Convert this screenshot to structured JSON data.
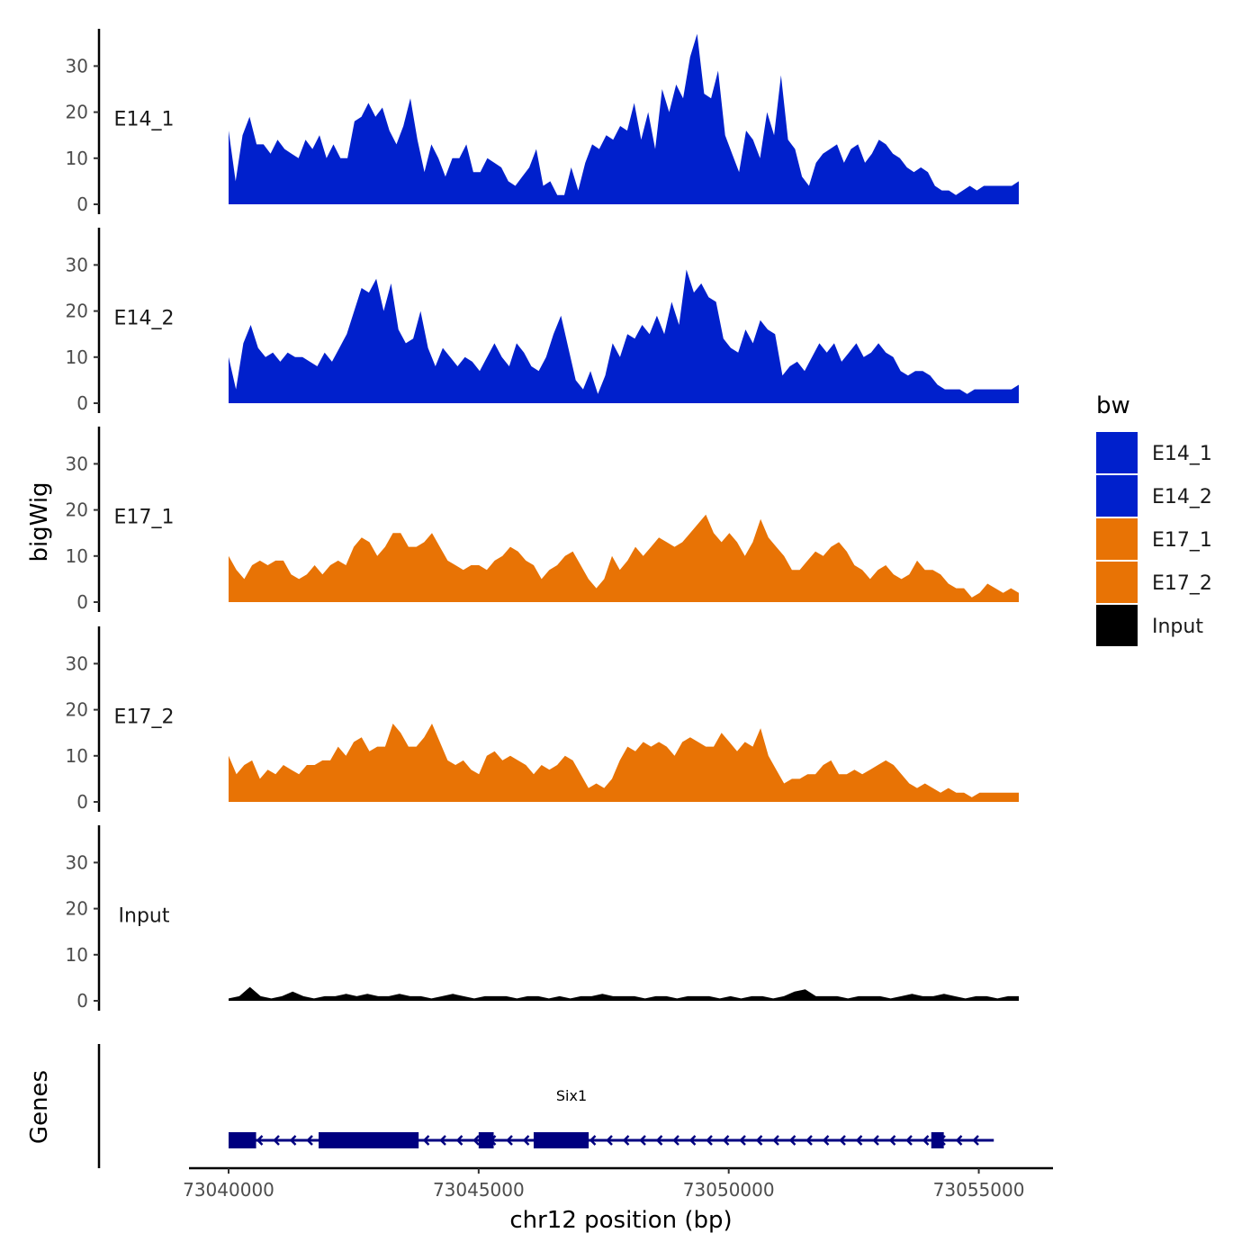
{
  "chart_data": {
    "type": "area",
    "ylabel": "bigWig",
    "xlabel": "chr12 position (bp)",
    "genes_label": "Genes",
    "ylim": [
      0,
      38
    ],
    "y_ticks": [
      "0",
      "10",
      "20",
      "30"
    ],
    "x_ticks": [
      {
        "value": 73040000,
        "label": "73040000"
      },
      {
        "value": 73045000,
        "label": "73045000"
      },
      {
        "value": 73050000,
        "label": "73050000"
      },
      {
        "value": 73055000,
        "label": "73055000"
      }
    ],
    "x_range": [
      73040000,
      73055800
    ],
    "legend": {
      "title": "bw",
      "items": [
        {
          "name": "E14_1",
          "color": "#0020CC"
        },
        {
          "name": "E14_2",
          "color": "#0020CC"
        },
        {
          "name": "E17_1",
          "color": "#E87305"
        },
        {
          "name": "E17_2",
          "color": "#E87305"
        },
        {
          "name": "Input",
          "color": "#000000"
        }
      ]
    },
    "tracks": [
      {
        "name": "E14_1",
        "color": "#0020CC",
        "values": [
          16,
          5,
          15,
          19,
          13,
          13,
          11,
          14,
          12,
          11,
          10,
          14,
          12,
          15,
          10,
          13,
          10,
          10,
          18,
          19,
          22,
          19,
          21,
          16,
          13,
          17,
          23,
          14,
          7,
          13,
          10,
          6,
          10,
          10,
          13,
          7,
          7,
          10,
          9,
          8,
          5,
          4,
          6,
          8,
          12,
          4,
          5,
          2,
          2,
          8,
          3,
          9,
          13,
          12,
          15,
          14,
          17,
          16,
          22,
          14,
          20,
          12,
          25,
          20,
          26,
          23,
          32,
          37,
          24,
          23,
          29,
          15,
          11,
          7,
          16,
          14,
          10,
          20,
          15,
          28,
          14,
          12,
          6,
          4,
          9,
          11,
          12,
          13,
          9,
          12,
          13,
          9,
          11,
          14,
          13,
          11,
          10,
          8,
          7,
          8,
          7,
          4,
          3,
          3,
          2,
          3,
          4,
          3,
          4,
          4,
          4,
          4,
          4,
          5
        ]
      },
      {
        "name": "E14_2",
        "color": "#0020CC",
        "values": [
          10,
          3,
          13,
          17,
          12,
          10,
          11,
          9,
          11,
          10,
          10,
          9,
          8,
          11,
          9,
          12,
          15,
          20,
          25,
          24,
          27,
          20,
          26,
          16,
          13,
          14,
          20,
          12,
          8,
          12,
          10,
          8,
          10,
          9,
          7,
          10,
          13,
          10,
          8,
          13,
          11,
          8,
          7,
          10,
          15,
          19,
          12,
          5,
          3,
          7,
          2,
          6,
          13,
          10,
          15,
          14,
          17,
          15,
          19,
          15,
          22,
          17,
          29,
          24,
          26,
          23,
          22,
          14,
          12,
          11,
          16,
          13,
          18,
          16,
          15,
          6,
          8,
          9,
          7,
          10,
          13,
          11,
          13,
          9,
          11,
          13,
          10,
          11,
          13,
          11,
          10,
          7,
          6,
          7,
          7,
          6,
          4,
          3,
          3,
          3,
          2,
          3,
          3,
          3,
          3,
          3,
          3,
          4
        ]
      },
      {
        "name": "E17_1",
        "color": "#E87305",
        "values": [
          10,
          7,
          5,
          8,
          9,
          8,
          9,
          9,
          6,
          5,
          6,
          8,
          6,
          8,
          9,
          8,
          12,
          14,
          13,
          10,
          12,
          15,
          15,
          12,
          12,
          13,
          15,
          12,
          9,
          8,
          7,
          8,
          8,
          7,
          9,
          10,
          12,
          11,
          9,
          8,
          5,
          7,
          8,
          10,
          11,
          8,
          5,
          3,
          5,
          10,
          7,
          9,
          12,
          10,
          12,
          14,
          13,
          12,
          13,
          15,
          17,
          19,
          15,
          13,
          15,
          13,
          10,
          13,
          18,
          14,
          12,
          10,
          7,
          7,
          9,
          11,
          10,
          12,
          13,
          11,
          8,
          7,
          5,
          7,
          8,
          6,
          5,
          6,
          9,
          7,
          7,
          6,
          4,
          3,
          3,
          1,
          2,
          4,
          3,
          2,
          3,
          2
        ]
      },
      {
        "name": "E17_2",
        "color": "#E87305",
        "values": [
          10,
          6,
          8,
          9,
          5,
          7,
          6,
          8,
          7,
          6,
          8,
          8,
          9,
          9,
          12,
          10,
          13,
          14,
          11,
          12,
          12,
          17,
          15,
          12,
          12,
          14,
          17,
          13,
          9,
          8,
          9,
          7,
          6,
          10,
          11,
          9,
          10,
          9,
          8,
          6,
          8,
          7,
          8,
          10,
          9,
          6,
          3,
          4,
          3,
          5,
          9,
          12,
          11,
          13,
          12,
          13,
          12,
          10,
          13,
          14,
          13,
          12,
          12,
          15,
          13,
          11,
          13,
          12,
          16,
          10,
          7,
          4,
          5,
          5,
          6,
          6,
          8,
          9,
          6,
          6,
          7,
          6,
          7,
          8,
          9,
          8,
          6,
          4,
          3,
          4,
          3,
          2,
          3,
          2,
          2,
          1,
          2,
          2,
          2,
          2,
          2,
          2
        ]
      },
      {
        "name": "Input",
        "color": "#000000",
        "values": [
          0.5,
          1,
          3,
          1,
          0.5,
          1,
          2,
          1,
          0.5,
          1,
          1,
          1.5,
          1,
          1.5,
          1,
          1,
          1.5,
          1,
          1,
          0.5,
          1,
          1.5,
          1,
          0.5,
          1,
          1,
          1,
          0.5,
          1,
          1,
          0.5,
          1,
          0.5,
          1,
          1,
          1.5,
          1,
          1,
          1,
          0.5,
          1,
          1,
          0.5,
          1,
          1,
          1,
          0.5,
          1,
          0.5,
          1,
          1,
          0.5,
          1,
          2,
          2.5,
          1,
          1,
          1,
          0.5,
          1,
          1,
          1,
          0.5,
          1,
          1.5,
          1,
          1,
          1.5,
          1,
          0.5,
          1,
          1,
          0.5,
          1,
          1
        ]
      }
    ],
    "genes": [
      {
        "name": "Six1",
        "start": 73040000,
        "end": 73055300,
        "strand": "-",
        "exons": [
          [
            73040000,
            73040550
          ],
          [
            73041800,
            73043800
          ],
          [
            73045000,
            73045300
          ],
          [
            73046100,
            73047200
          ],
          [
            73054050,
            73054300
          ]
        ]
      }
    ]
  }
}
